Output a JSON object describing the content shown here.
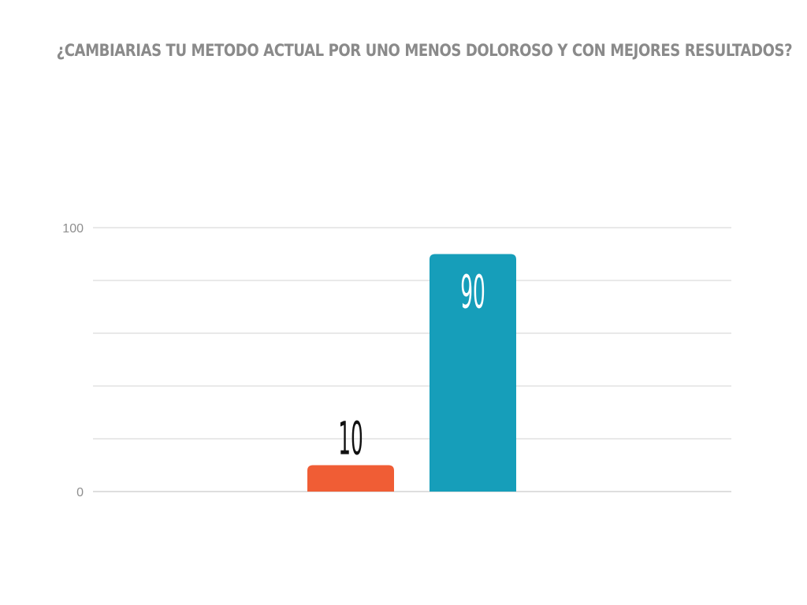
{
  "chart_data": {
    "type": "bar",
    "title": "¿CAMBIARIAS TU METODO ACTUAL POR UNO MENOS DOLOROSO Y CON MEJORES RESULTADOS?",
    "categories": [
      "",
      "",
      "",
      "",
      ""
    ],
    "values": [
      null,
      null,
      10,
      90,
      null
    ],
    "data_labels": [
      "",
      "",
      "10",
      "90",
      ""
    ],
    "bar_colors": [
      "#f05d35",
      "#f05d35",
      "#f05d35",
      "#169eba",
      "#169eba"
    ],
    "ylim": [
      0,
      100
    ],
    "y_tick_labels": [
      "0",
      "100"
    ],
    "gridlines": [
      0,
      20,
      40,
      60,
      80,
      100
    ],
    "grid": true,
    "xlabel": "",
    "ylabel": ""
  }
}
